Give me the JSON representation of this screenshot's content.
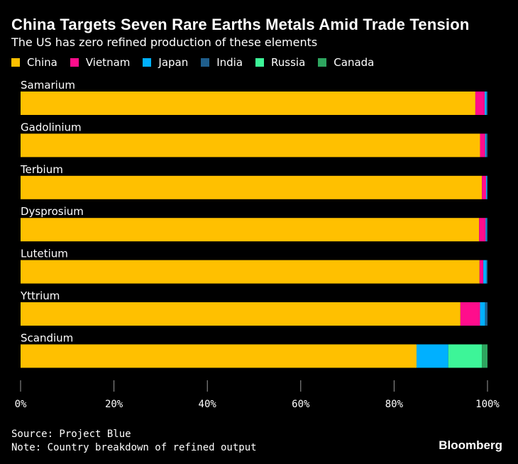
{
  "title": "China Targets Seven Rare Earths Metals Amid Trade Tension",
  "subtitle": "The US has zero refined production of these elements",
  "legend": [
    {
      "name": "China",
      "color": "#FFC000"
    },
    {
      "name": "Vietnam",
      "color": "#FF0D8C"
    },
    {
      "name": "Japan",
      "color": "#00B0FF"
    },
    {
      "name": "India",
      "color": "#1F5E8C"
    },
    {
      "name": "Russia",
      "color": "#3DF598"
    },
    {
      "name": "Canada",
      "color": "#2EA55F"
    }
  ],
  "chart_data": {
    "type": "bar",
    "orientation": "horizontal",
    "stacked": true,
    "categories": [
      "Samarium",
      "Gadolinium",
      "Terbium",
      "Dysprosium",
      "Lutetium",
      "Yttrium",
      "Scandium"
    ],
    "series": [
      {
        "name": "China",
        "color": "#FFC000",
        "values": [
          97.4,
          98.4,
          98.8,
          98.2,
          98.3,
          94.2,
          84.8
        ]
      },
      {
        "name": "Vietnam",
        "color": "#FF0D8C",
        "values": [
          2.0,
          1.1,
          0.9,
          1.4,
          0.8,
          4.2,
          0
        ]
      },
      {
        "name": "Japan",
        "color": "#00B0FF",
        "values": [
          0.4,
          0.2,
          0.2,
          0.2,
          0.7,
          1.1,
          6.8
        ]
      },
      {
        "name": "India",
        "color": "#1F5E8C",
        "values": [
          0.2,
          0.3,
          0.1,
          0.2,
          0.2,
          0.5,
          0
        ]
      },
      {
        "name": "Russia",
        "color": "#3DF598",
        "values": [
          0,
          0,
          0,
          0,
          0,
          0,
          7.2
        ]
      },
      {
        "name": "Canada",
        "color": "#2EA55F",
        "values": [
          0,
          0,
          0,
          0,
          0,
          0,
          1.2
        ]
      }
    ],
    "xlim": [
      0,
      100
    ],
    "xticks": [
      0,
      20,
      40,
      60,
      80,
      100
    ],
    "xtick_labels": [
      "0%",
      "20%",
      "40%",
      "60%",
      "80%",
      "100%"
    ],
    "grid": false,
    "legend_position": "top-left"
  },
  "footer": {
    "source": "Source: Project Blue",
    "note": "Note: Country breakdown of refined output",
    "brand": "Bloomberg"
  }
}
